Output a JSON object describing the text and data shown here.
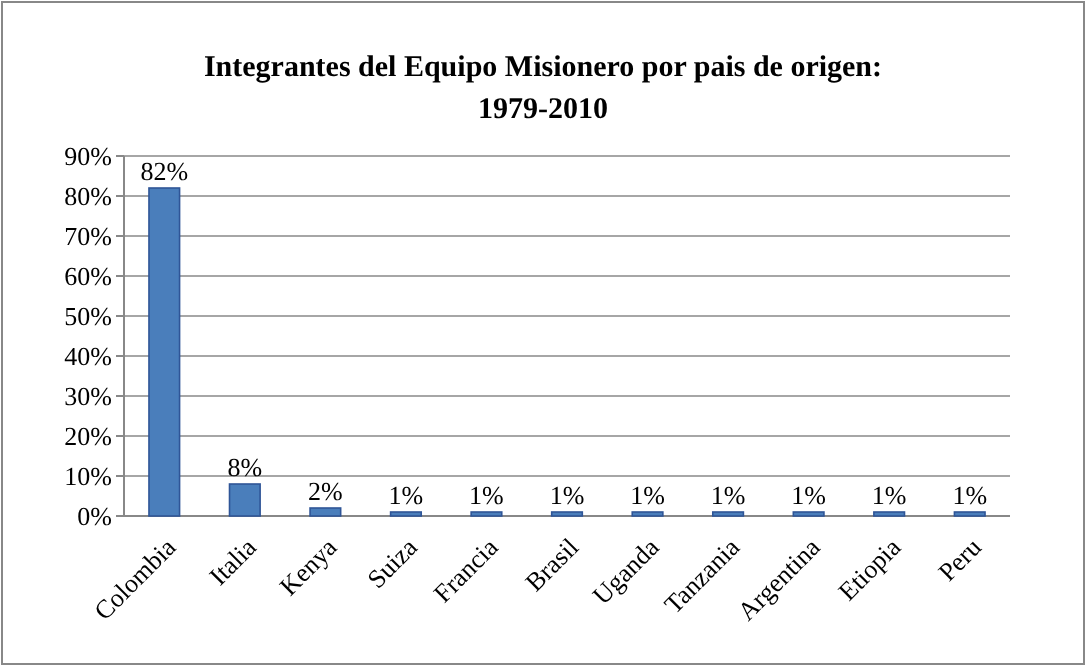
{
  "chart_data": {
    "type": "bar",
    "title": "Integrantes del Equipo Misionero por pais de origen: 1979-2010",
    "categories": [
      "Colombia",
      "Italia",
      "Kenya",
      "Suiza",
      "Francia",
      "Brasil",
      "Uganda",
      "Tanzania",
      "Argentina",
      "Etiopia",
      "Peru"
    ],
    "values": [
      82,
      8,
      2,
      1,
      1,
      1,
      1,
      1,
      1,
      1,
      1
    ],
    "color": "#4a7ebb",
    "value_labels": [
      "82%",
      "8%",
      "2%",
      "1%",
      "1%",
      "1%",
      "1%",
      "1%",
      "1%",
      "1%",
      "1%"
    ],
    "ylim": [
      0,
      90
    ],
    "yticks": [
      {
        "value": 0,
        "label": "0%"
      },
      {
        "value": 10,
        "label": "10%"
      },
      {
        "value": 20,
        "label": "20%"
      },
      {
        "value": 30,
        "label": "30%"
      },
      {
        "value": 40,
        "label": "40%"
      },
      {
        "value": 50,
        "label": "50%"
      },
      {
        "value": 60,
        "label": "60%"
      },
      {
        "value": 70,
        "label": "70%"
      },
      {
        "value": 80,
        "label": "80%"
      },
      {
        "value": 90,
        "label": "90%"
      }
    ],
    "grid": "y"
  }
}
